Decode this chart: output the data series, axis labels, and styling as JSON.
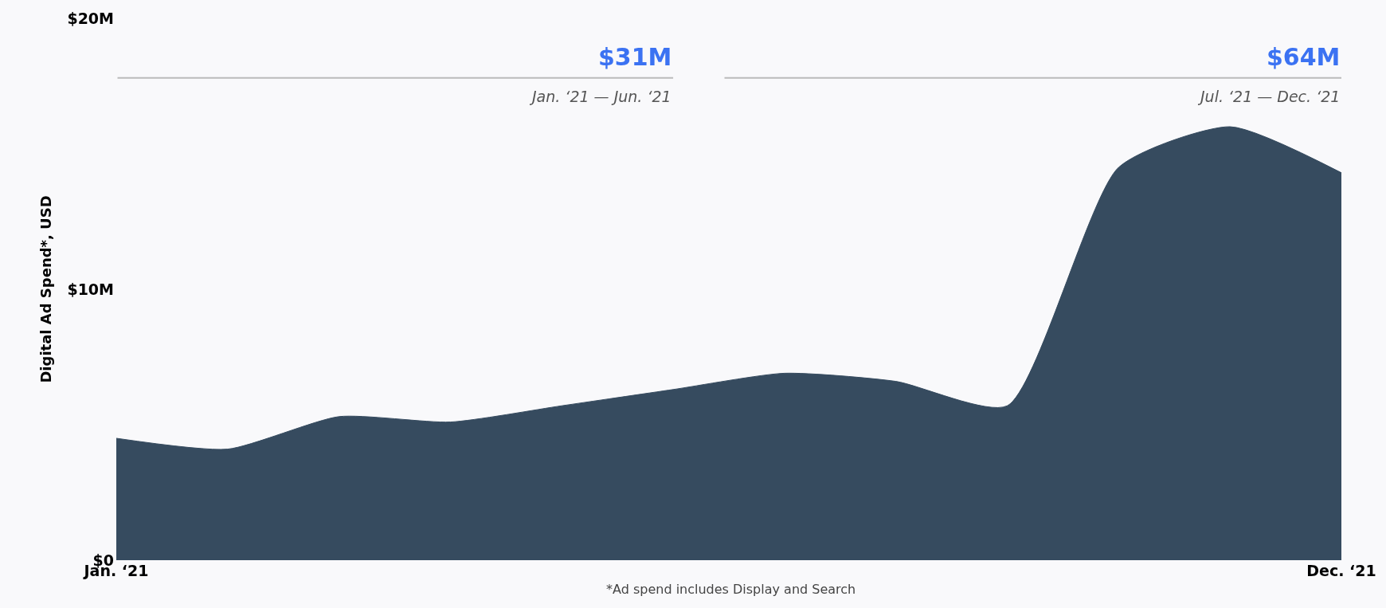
{
  "chart_data": {
    "type": "area",
    "categories": [
      "Jan. ‘21",
      null,
      null,
      null,
      null,
      null,
      null,
      null,
      null,
      null,
      null,
      "Dec. ‘21"
    ],
    "values": [
      4.5,
      4.1,
      5.3,
      5.1,
      5.7,
      6.3,
      6.9,
      6.6,
      5.7,
      14.5,
      16.0,
      14.3
    ],
    "color": "#364b5f",
    "ylabel": "Digital Ad Spend*, USD",
    "ylim": [
      0,
      20
    ],
    "yticks": [
      {
        "value": 0,
        "label": "$0"
      },
      {
        "value": 10,
        "label": "$10M"
      },
      {
        "value": 20,
        "label": "$20M"
      }
    ],
    "grid": false,
    "annotations": [
      "$31M",
      "Jan. ‘21 — Jun. ‘21",
      "$64M",
      "Jul. ‘21 — Dec. ‘21",
      "*Ad spend includes Display and Search"
    ]
  }
}
